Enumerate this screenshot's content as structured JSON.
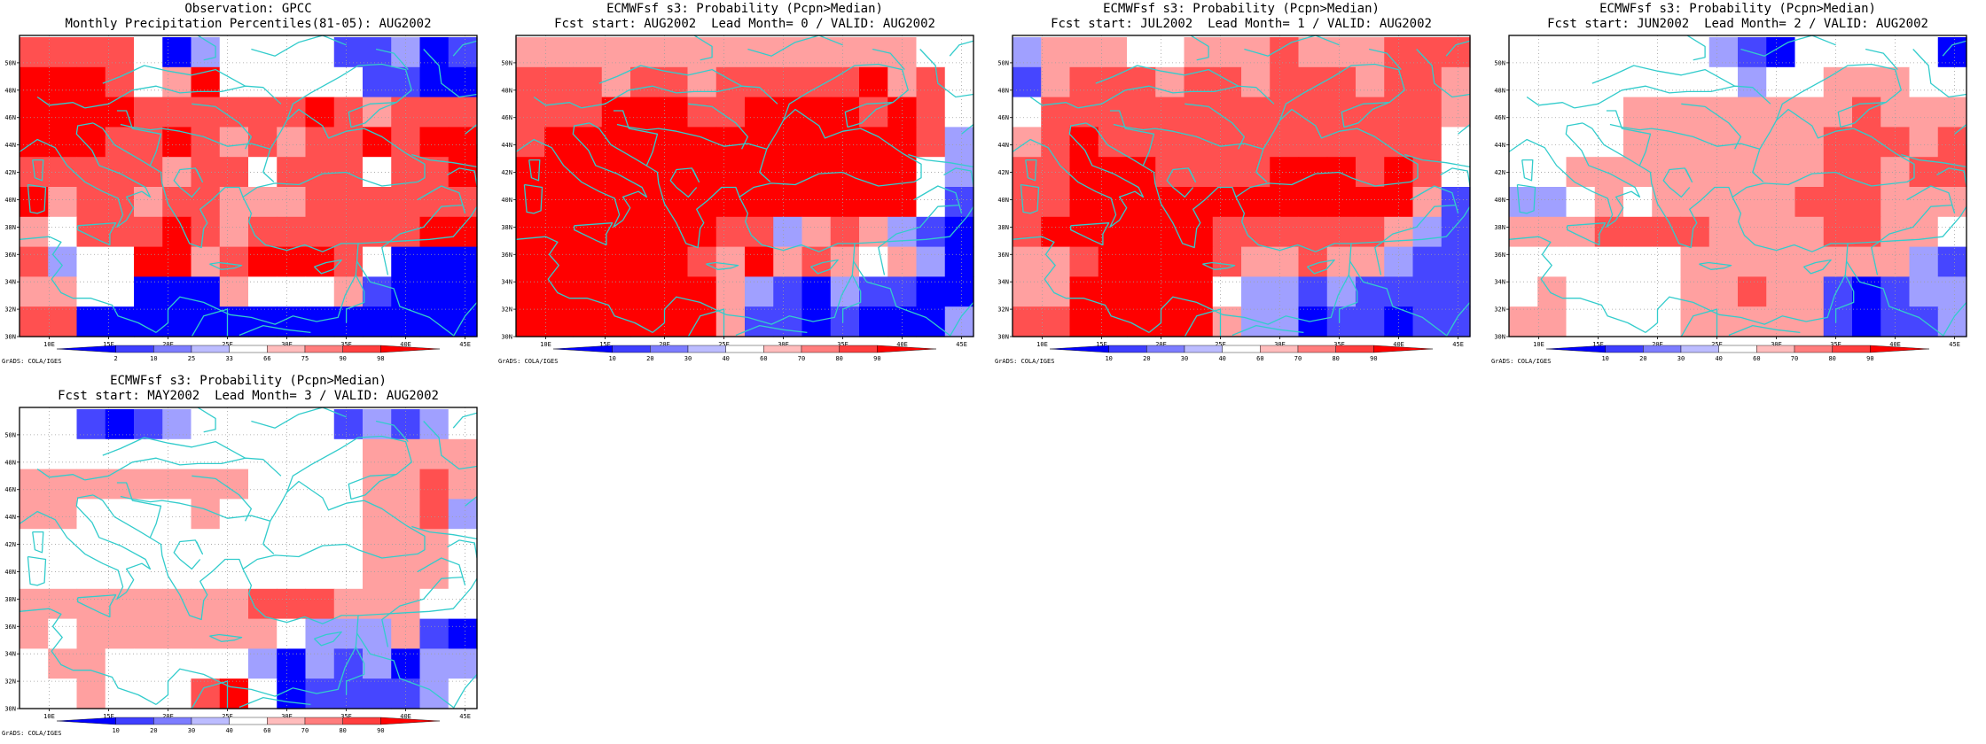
{
  "colors": {
    "land_border": "#33cccc",
    "grid": "#a0a0a0",
    "frame": "#000000"
  },
  "credit": "GrADS: COLA/IGES",
  "chart_data": [
    {
      "type": "heatmap",
      "title": "Observation: GPCC",
      "subtitle": "Monthly Precipitation Percentiles(81-05): AUG2002",
      "xlabels": [
        "10E",
        "15E",
        "20E",
        "25E",
        "30E",
        "35E",
        "40E",
        "45E"
      ],
      "ylabels": [
        "30N",
        "32N",
        "34N",
        "36N",
        "38N",
        "40N",
        "42N",
        "44N",
        "46N",
        "48N",
        "50N"
      ],
      "xlim": [
        7.5,
        46
      ],
      "ylim": [
        30,
        52
      ],
      "grid": true,
      "colorbar": {
        "ticks": [
          "2",
          "10",
          "25",
          "33",
          "66",
          "75",
          "90",
          "98"
        ],
        "levels": [
          -3,
          -2,
          -1,
          0,
          0,
          1,
          2,
          3
        ],
        "tick_colors": [
          "#0000ff",
          "#3f3fff",
          "#7d7dff",
          "#bcbcff",
          "#ffbcbc",
          "#ff7d7d",
          "#ff3f3f",
          "#ff0000"
        ]
      },
      "grid_values": [
        [
          2,
          2,
          2,
          2,
          0,
          -3,
          -1,
          0,
          0,
          0,
          0,
          -2,
          -2,
          -1,
          -3,
          -2
        ],
        [
          3,
          3,
          3,
          2,
          0,
          1,
          3,
          0,
          0,
          0,
          0,
          0,
          -2,
          -2,
          -3,
          -3
        ],
        [
          3,
          3,
          3,
          3,
          2,
          2,
          2,
          2,
          2,
          2,
          3,
          2,
          1,
          2,
          2,
          2
        ],
        [
          3,
          3,
          3,
          2,
          2,
          3,
          2,
          1,
          2,
          1,
          2,
          2,
          3,
          2,
          3,
          3
        ],
        [
          2,
          2,
          2,
          2,
          2,
          1,
          2,
          2,
          0,
          2,
          2,
          2,
          0,
          2,
          2,
          3
        ],
        [
          3,
          1,
          2,
          2,
          1,
          2,
          2,
          1,
          1,
          1,
          2,
          2,
          2,
          2,
          2,
          2
        ],
        [
          1,
          0,
          2,
          2,
          2,
          3,
          2,
          1,
          2,
          2,
          2,
          2,
          2,
          2,
          3,
          3
        ],
        [
          2,
          -1,
          0,
          0,
          3,
          3,
          1,
          2,
          3,
          3,
          3,
          2,
          0,
          -3,
          -3,
          -3
        ],
        [
          1,
          1,
          0,
          0,
          -3,
          -3,
          -3,
          1,
          0,
          0,
          0,
          1,
          -2,
          -3,
          -3,
          -3
        ],
        [
          2,
          2,
          -3,
          -3,
          -3,
          -3,
          -3,
          -3,
          -3,
          -3,
          -3,
          -3,
          -3,
          -3,
          -3,
          -3
        ]
      ]
    },
    {
      "type": "heatmap",
      "title": "ECMWFsf s3: Probability (Pcpn>Median)",
      "subtitle": "Fcst start: AUG2002  Lead Month= 0 / VALID: AUG2002",
      "xlabels": [
        "10E",
        "15E",
        "20E",
        "25E",
        "30E",
        "35E",
        "40E",
        "45E"
      ],
      "ylabels": [
        "30N",
        "32N",
        "34N",
        "36N",
        "38N",
        "40N",
        "42N",
        "44N",
        "46N",
        "48N",
        "50N"
      ],
      "xlim": [
        7.5,
        46
      ],
      "ylim": [
        30,
        52
      ],
      "grid": true,
      "colorbar": {
        "ticks": [
          "10",
          "20",
          "30",
          "40",
          "60",
          "70",
          "80",
          "90"
        ],
        "levels": [
          -3,
          -2,
          -1,
          0,
          0,
          1,
          2,
          3
        ],
        "tick_colors": [
          "#0000ff",
          "#3f3fff",
          "#7d7dff",
          "#bcbcff",
          "#ffbcbc",
          "#ff7d7d",
          "#ff3f3f",
          "#ff0000"
        ]
      },
      "grid_values": [
        [
          1,
          1,
          1,
          1,
          1,
          1,
          1,
          1,
          1,
          1,
          1,
          1,
          1,
          1,
          0,
          0
        ],
        [
          2,
          2,
          2,
          1,
          2,
          2,
          1,
          2,
          2,
          2,
          2,
          2,
          3,
          1,
          2,
          0
        ],
        [
          2,
          2,
          2,
          3,
          3,
          3,
          2,
          2,
          3,
          3,
          3,
          3,
          2,
          3,
          2,
          0
        ],
        [
          2,
          3,
          3,
          3,
          3,
          3,
          3,
          3,
          3,
          3,
          3,
          3,
          3,
          3,
          2,
          -1
        ],
        [
          3,
          3,
          3,
          3,
          3,
          3,
          3,
          3,
          3,
          3,
          3,
          3,
          3,
          3,
          0,
          -1
        ],
        [
          3,
          3,
          3,
          3,
          3,
          3,
          3,
          3,
          3,
          3,
          3,
          3,
          3,
          3,
          0,
          -2
        ],
        [
          3,
          3,
          3,
          3,
          3,
          3,
          3,
          2,
          2,
          -1,
          1,
          2,
          1,
          -1,
          -2,
          -3
        ],
        [
          3,
          3,
          3,
          3,
          3,
          3,
          2,
          1,
          3,
          1,
          2,
          1,
          0,
          1,
          -1,
          -3
        ],
        [
          3,
          3,
          3,
          3,
          3,
          3,
          3,
          1,
          -1,
          -2,
          -3,
          -1,
          -2,
          -2,
          -3,
          -3
        ],
        [
          3,
          3,
          3,
          3,
          3,
          3,
          3,
          1,
          -2,
          -2,
          -3,
          -2,
          -3,
          -3,
          -3,
          -1
        ]
      ]
    },
    {
      "type": "heatmap",
      "title": "ECMWFsf s3: Probability (Pcpn>Median)",
      "subtitle": "Fcst start: JUL2002  Lead Month= 1 / VALID: AUG2002",
      "xlabels": [
        "10E",
        "15E",
        "20E",
        "25E",
        "30E",
        "35E",
        "40E",
        "45E"
      ],
      "ylabels": [
        "30N",
        "32N",
        "34N",
        "36N",
        "38N",
        "40N",
        "42N",
        "44N",
        "46N",
        "48N",
        "50N"
      ],
      "xlim": [
        7.5,
        46
      ],
      "ylim": [
        30,
        52
      ],
      "grid": true,
      "colorbar": {
        "ticks": [
          "10",
          "20",
          "30",
          "40",
          "60",
          "70",
          "80",
          "90"
        ],
        "levels": [
          -3,
          -2,
          -1,
          0,
          0,
          1,
          2,
          3
        ],
        "tick_colors": [
          "#0000ff",
          "#3f3fff",
          "#7d7dff",
          "#bcbcff",
          "#ffbcbc",
          "#ff7d7d",
          "#ff3f3f",
          "#ff0000"
        ]
      },
      "grid_values": [
        [
          -1,
          1,
          1,
          1,
          0,
          0,
          1,
          1,
          1,
          2,
          1,
          1,
          1,
          2,
          2,
          2
        ],
        [
          -2,
          1,
          2,
          2,
          2,
          1,
          2,
          2,
          1,
          2,
          2,
          2,
          1,
          2,
          2,
          1
        ],
        [
          0,
          2,
          2,
          2,
          2,
          2,
          2,
          2,
          2,
          2,
          2,
          2,
          2,
          2,
          2,
          1
        ],
        [
          1,
          2,
          3,
          2,
          2,
          2,
          2,
          2,
          2,
          2,
          2,
          2,
          2,
          2,
          2,
          0
        ],
        [
          2,
          2,
          3,
          3,
          3,
          2,
          2,
          2,
          2,
          3,
          3,
          3,
          2,
          3,
          2,
          0
        ],
        [
          2,
          2,
          3,
          3,
          3,
          3,
          3,
          3,
          3,
          3,
          3,
          3,
          3,
          3,
          1,
          -2
        ],
        [
          2,
          3,
          3,
          3,
          3,
          3,
          3,
          2,
          2,
          2,
          2,
          2,
          2,
          1,
          -1,
          -2
        ],
        [
          1,
          1,
          2,
          3,
          3,
          3,
          3,
          2,
          1,
          1,
          2,
          1,
          1,
          -1,
          -2,
          -2
        ],
        [
          1,
          1,
          3,
          3,
          3,
          3,
          3,
          0,
          -1,
          -1,
          -2,
          -1,
          -2,
          -2,
          -2,
          -2
        ],
        [
          2,
          2,
          3,
          3,
          3,
          3,
          3,
          1,
          -1,
          -1,
          -3,
          -2,
          -2,
          -3,
          -2,
          -2
        ]
      ]
    },
    {
      "type": "heatmap",
      "title": "ECMWFsf s3: Probability (Pcpn>Median)",
      "subtitle": "Fcst start: JUN2002  Lead Month= 2 / VALID: AUG2002",
      "xlabels": [
        "10E",
        "15E",
        "20E",
        "25E",
        "30E",
        "35E",
        "40E",
        "45E"
      ],
      "ylabels": [
        "30N",
        "32N",
        "34N",
        "36N",
        "38N",
        "40N",
        "42N",
        "44N",
        "46N",
        "48N",
        "50N"
      ],
      "xlim": [
        7.5,
        46
      ],
      "ylim": [
        30,
        52
      ],
      "grid": true,
      "colorbar": {
        "ticks": [
          "10",
          "20",
          "30",
          "40",
          "60",
          "70",
          "80",
          "90"
        ],
        "levels": [
          -3,
          -2,
          -1,
          0,
          0,
          1,
          2,
          3
        ],
        "tick_colors": [
          "#0000ff",
          "#3f3fff",
          "#7d7dff",
          "#bcbcff",
          "#ffbcbc",
          "#ff7d7d",
          "#ff3f3f",
          "#ff0000"
        ]
      },
      "grid_values": [
        [
          0,
          0,
          0,
          0,
          0,
          0,
          0,
          -1,
          -2,
          -3,
          0,
          0,
          0,
          0,
          0,
          -3
        ],
        [
          0,
          0,
          0,
          0,
          0,
          0,
          0,
          0,
          -1,
          0,
          0,
          1,
          1,
          1,
          0,
          0
        ],
        [
          0,
          0,
          0,
          0,
          1,
          1,
          1,
          1,
          1,
          1,
          1,
          1,
          2,
          1,
          1,
          1
        ],
        [
          0,
          0,
          0,
          0,
          1,
          1,
          1,
          1,
          1,
          1,
          1,
          2,
          2,
          2,
          1,
          2
        ],
        [
          0,
          0,
          1,
          1,
          1,
          1,
          1,
          1,
          1,
          1,
          1,
          2,
          2,
          1,
          2,
          2
        ],
        [
          -1,
          -1,
          0,
          1,
          0,
          1,
          1,
          1,
          1,
          1,
          2,
          2,
          2,
          1,
          1,
          1
        ],
        [
          1,
          1,
          1,
          2,
          2,
          2,
          2,
          1,
          1,
          1,
          1,
          2,
          2,
          1,
          1,
          0
        ],
        [
          0,
          0,
          0,
          0,
          0,
          0,
          1,
          1,
          1,
          1,
          1,
          1,
          1,
          1,
          -1,
          -2
        ],
        [
          0,
          1,
          0,
          0,
          0,
          0,
          1,
          1,
          2,
          1,
          1,
          -2,
          -3,
          -2,
          -1,
          -1
        ],
        [
          1,
          1,
          0,
          0,
          0,
          0,
          1,
          1,
          1,
          1,
          1,
          -2,
          -3,
          -2,
          -2,
          -1
        ]
      ]
    },
    {
      "type": "heatmap",
      "title": "ECMWFsf s3: Probability (Pcpn>Median)",
      "subtitle": "Fcst start: MAY2002  Lead Month= 3 / VALID: AUG2002",
      "xlabels": [
        "10E",
        "15E",
        "20E",
        "25E",
        "30E",
        "35E",
        "40E",
        "45E"
      ],
      "ylabels": [
        "30N",
        "32N",
        "34N",
        "36N",
        "38N",
        "40N",
        "42N",
        "44N",
        "46N",
        "48N",
        "50N"
      ],
      "xlim": [
        7.5,
        46
      ],
      "ylim": [
        30,
        52
      ],
      "grid": true,
      "colorbar": {
        "ticks": [
          "10",
          "20",
          "30",
          "40",
          "60",
          "70",
          "80",
          "90"
        ],
        "levels": [
          -3,
          -2,
          -1,
          0,
          0,
          1,
          2,
          3
        ],
        "tick_colors": [
          "#0000ff",
          "#3f3fff",
          "#7d7dff",
          "#bcbcff",
          "#ffbcbc",
          "#ff7d7d",
          "#ff3f3f",
          "#ff0000"
        ]
      },
      "grid_values": [
        [
          0,
          0,
          -2,
          -3,
          -2,
          -1,
          0,
          0,
          0,
          0,
          0,
          -2,
          -1,
          -2,
          -1,
          0
        ],
        [
          0,
          0,
          0,
          0,
          0,
          0,
          0,
          0,
          0,
          0,
          0,
          0,
          1,
          1,
          1,
          1
        ],
        [
          1,
          1,
          1,
          1,
          1,
          1,
          1,
          1,
          0,
          0,
          0,
          0,
          1,
          1,
          2,
          1
        ],
        [
          1,
          1,
          0,
          0,
          0,
          0,
          1,
          0,
          0,
          0,
          0,
          0,
          1,
          1,
          2,
          -1
        ],
        [
          0,
          0,
          0,
          0,
          0,
          0,
          0,
          0,
          0,
          0,
          0,
          0,
          1,
          1,
          1,
          0
        ],
        [
          0,
          0,
          0,
          0,
          0,
          0,
          0,
          0,
          0,
          0,
          0,
          0,
          1,
          1,
          1,
          0
        ],
        [
          1,
          1,
          1,
          1,
          1,
          1,
          1,
          1,
          2,
          2,
          2,
          1,
          1,
          1,
          0,
          0
        ],
        [
          1,
          0,
          1,
          1,
          1,
          1,
          1,
          1,
          1,
          0,
          -1,
          -1,
          -1,
          1,
          -2,
          -3
        ],
        [
          0,
          1,
          1,
          0,
          0,
          0,
          0,
          0,
          -1,
          -3,
          -1,
          -2,
          -1,
          -3,
          -1,
          -1
        ],
        [
          0,
          0,
          1,
          0,
          0,
          0,
          2,
          3,
          0,
          -3,
          -2,
          -2,
          -2,
          -2,
          -1,
          0
        ]
      ]
    }
  ]
}
